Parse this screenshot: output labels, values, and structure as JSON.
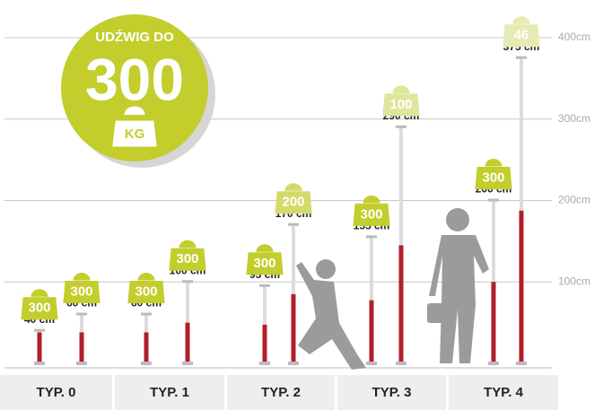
{
  "chart_data": {
    "type": "props",
    "badge": {
      "line1": "UDŹWIG DO",
      "value": "300",
      "unit": "KG"
    },
    "ylim": [
      0,
      400
    ],
    "yticks": [
      {
        "value": 100,
        "label": "100cm"
      },
      {
        "value": 200,
        "label": "200cm"
      },
      {
        "value": 300,
        "label": "300cm"
      },
      {
        "value": 400,
        "label": "400cm"
      }
    ],
    "grid": true,
    "groups": [
      {
        "label": "TYP. 0",
        "heights": [
          40,
          60
        ],
        "height_labels": [
          "40 cm",
          "60 cm"
        ],
        "loads": [
          300,
          300
        ],
        "load_colors": [
          "#c3cd2c",
          "#c3cd2c"
        ]
      },
      {
        "label": "TYP. 1",
        "heights": [
          60,
          100
        ],
        "height_labels": [
          "60 cm",
          "100 cm"
        ],
        "loads": [
          300,
          300
        ],
        "load_colors": [
          "#c3cd2c",
          "#c3cd2c"
        ]
      },
      {
        "label": "TYP. 2",
        "heights": [
          95,
          170
        ],
        "height_labels": [
          "95 cm",
          "170 cm"
        ],
        "loads": [
          300,
          200
        ],
        "load_colors": [
          "#c3cd2c",
          "#d3da6a"
        ]
      },
      {
        "label": "TYP. 3",
        "heights": [
          155,
          290
        ],
        "height_labels": [
          "155 cm",
          "290 cm"
        ],
        "loads": [
          300,
          100
        ],
        "load_colors": [
          "#c3cd2c",
          "#dfe59a"
        ]
      },
      {
        "label": "TYP. 4",
        "heights": [
          200,
          375
        ],
        "height_labels": [
          "200 cm",
          "375 cm"
        ],
        "loads": [
          300,
          46
        ],
        "load_colors": [
          "#c3cd2c",
          "#e6ebb3"
        ]
      }
    ]
  }
}
